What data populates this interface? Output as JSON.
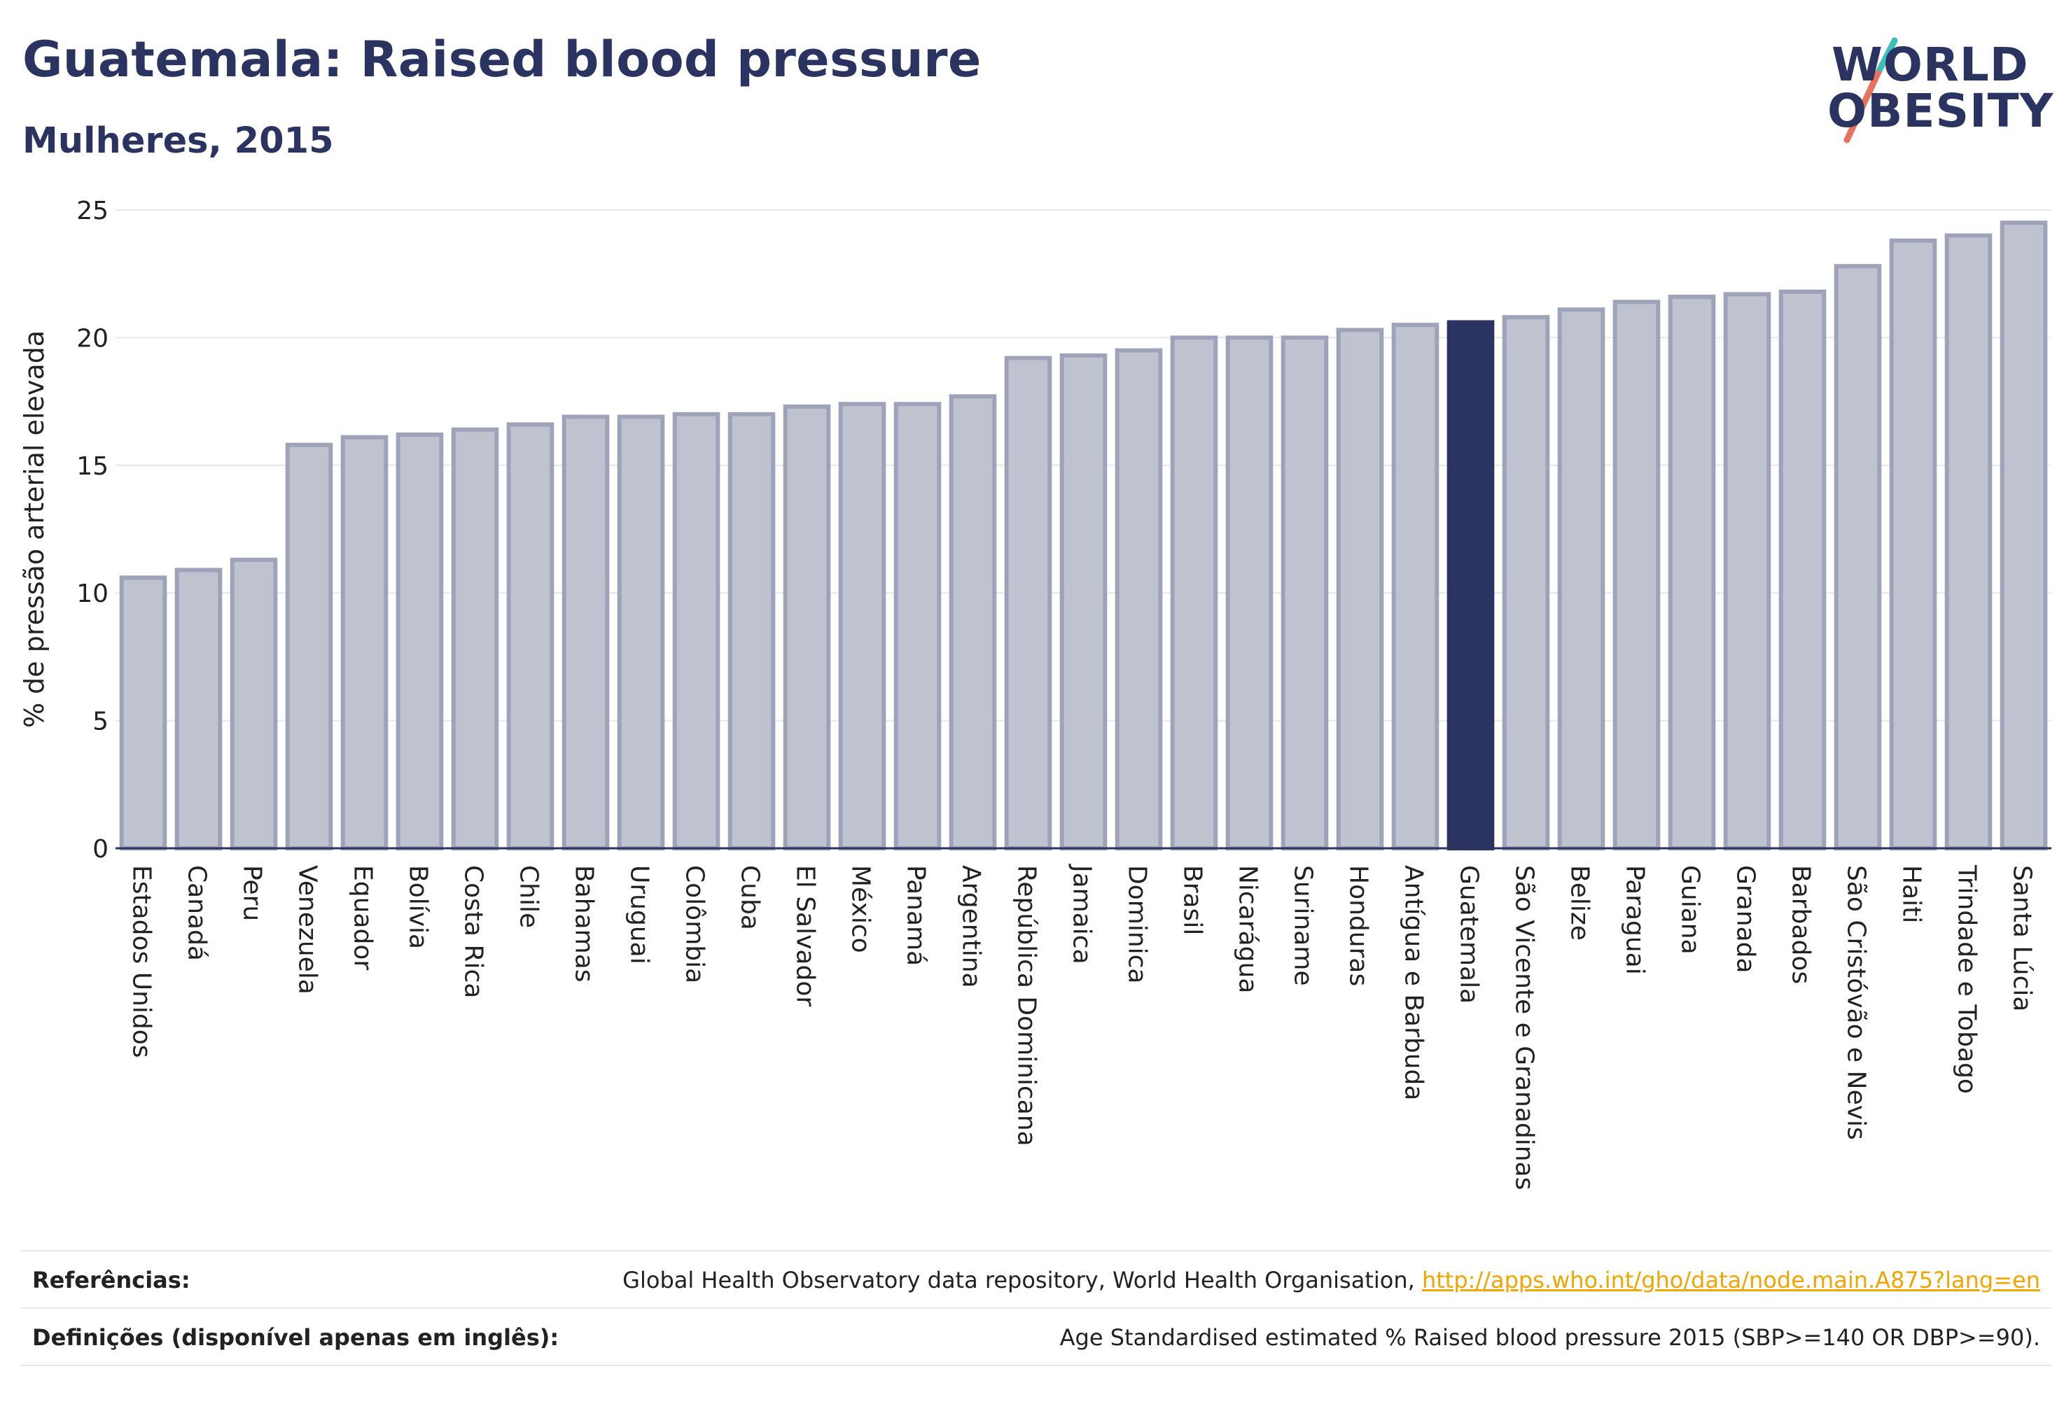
{
  "header": {
    "title": "Guatemala: Raised blood pressure",
    "subtitle": "Mulheres, 2015"
  },
  "logo": {
    "line1": "WORLD",
    "line2": "OBESITY"
  },
  "colors": {
    "bar": "#bfc2cf",
    "bar_stroke": "#9ea3b9",
    "highlight": "#2b3461",
    "grid": "#e6e7ec",
    "axis": "#2b3461",
    "logo_slash_top": "#3dbfb8",
    "logo_slash_bottom": "#e8715f",
    "link": "#f0a500"
  },
  "chart_data": {
    "type": "bar",
    "ylabel": "% de pressão arterial elevada",
    "ylim": [
      0,
      25
    ],
    "yticks": [
      0,
      5,
      10,
      15,
      20,
      25
    ],
    "grid": true,
    "highlight": "Guatemala",
    "categories": [
      "Estados Unidos",
      "Canadá",
      "Peru",
      "Venezuela",
      "Equador",
      "Bolívia",
      "Costa Rica",
      "Chile",
      "Bahamas",
      "Uruguai",
      "Colômbia",
      "Cuba",
      "El Salvador",
      "México",
      "Panamá",
      "Argentina",
      "República Dominicana",
      "Jamaica",
      "Dominica",
      "Brasil",
      "Nicarágua",
      "Suriname",
      "Honduras",
      "Antígua e Barbuda",
      "Guatemala",
      "São Vicente e Granadinas",
      "Belize",
      "Paraguai",
      "Guiana",
      "Granada",
      "Barbados",
      "São Cristóvão e Nevis",
      "Haiti",
      "Trindade e Tobago",
      "Santa Lúcia"
    ],
    "values": [
      10.6,
      10.9,
      11.3,
      15.8,
      16.1,
      16.2,
      16.4,
      16.6,
      16.9,
      16.9,
      17.0,
      17.0,
      17.3,
      17.4,
      17.4,
      17.7,
      19.2,
      19.3,
      19.5,
      20.0,
      20.0,
      20.0,
      20.3,
      20.5,
      20.6,
      20.8,
      21.1,
      21.4,
      21.6,
      21.7,
      21.8,
      22.8,
      23.8,
      24.0,
      24.5
    ]
  },
  "references": [
    {
      "label": "Referências:",
      "text": "Global Health Observatory data repository, World Health Organisation, ",
      "link": "http://apps.who.int/gho/data/node.main.A875?lang=en"
    },
    {
      "label": "Definições (disponível apenas em inglês):",
      "text": "Age Standardised estimated % Raised blood pressure 2015 (SBP>=140 OR DBP>=90)."
    }
  ]
}
